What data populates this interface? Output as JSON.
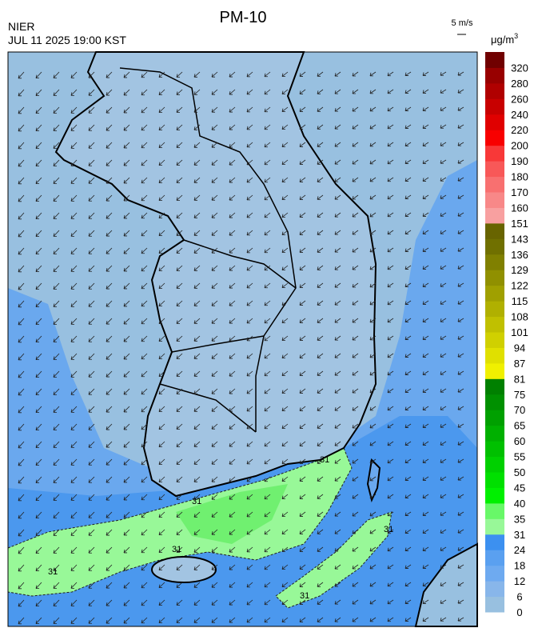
{
  "header": {
    "title": "PM-10",
    "source": "NIER",
    "datetime": "JUL 11 2025 19:00 KST",
    "wind_scale": "5 m/s",
    "unit": {
      "base": "μg/m",
      "sup": "3"
    }
  },
  "colorbar": {
    "labels": [
      0,
      6,
      12,
      18,
      24,
      31,
      35,
      40,
      45,
      50,
      55,
      60,
      65,
      70,
      75,
      81,
      87,
      94,
      101,
      108,
      115,
      122,
      129,
      136,
      143,
      151,
      160,
      170,
      180,
      190,
      200,
      220,
      240,
      260,
      280,
      320
    ],
    "colors": [
      "#98c0e0",
      "#88b6ea",
      "#6eaaf0",
      "#5aa0f0",
      "#3c90f0",
      "#98f898",
      "#68f868",
      "#00f000",
      "#00e000",
      "#00d000",
      "#00c000",
      "#00b000",
      "#00a000",
      "#009000",
      "#008000",
      "#f0f000",
      "#e0e000",
      "#d0d000",
      "#c0c000",
      "#b0b000",
      "#a0a000",
      "#909000",
      "#808000",
      "#707000",
      "#686400",
      "#f8a0a0",
      "#f88888",
      "#f87070",
      "#f85858",
      "#f83838",
      "#f80000",
      "#e00000",
      "#c80000",
      "#b00000",
      "#980000",
      "#700000"
    ]
  },
  "map": {
    "contour_labels": [
      31,
      31,
      31,
      31,
      31,
      31
    ]
  }
}
